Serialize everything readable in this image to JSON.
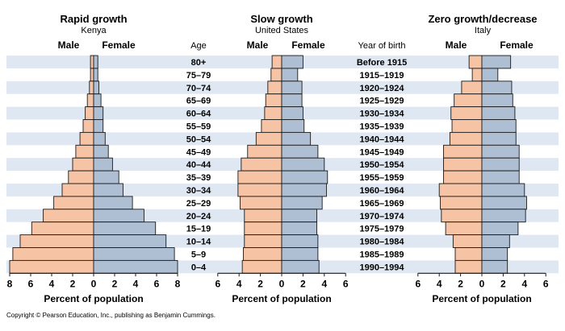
{
  "copyright": "Copyright © Pearson Education, Inc., publishing as Benjamin Cummings.",
  "age_header": "Age",
  "year_header": "Year of birth",
  "age_groups": [
    "80+",
    "75–79",
    "70–74",
    "65–69",
    "60–64",
    "55–59",
    "50–54",
    "45–49",
    "40–44",
    "35–39",
    "30–34",
    "25–29",
    "20–24",
    "15–19",
    "10–14",
    "5–9",
    "0–4"
  ],
  "birth_years": [
    "Before 1915",
    "1915–1919",
    "1920–1924",
    "1925–1929",
    "1930–1934",
    "1935–1939",
    "1940–1944",
    "1945–1949",
    "1950–1954",
    "1955–1959",
    "1960–1964",
    "1965–1969",
    "1970–1974",
    "1975–1979",
    "1980–1984",
    "1985–1989",
    "1990–1994"
  ],
  "colors": {
    "male": "#f6c4a4",
    "female": "#aebfd3",
    "stripe": "#dfe8f2",
    "outline": "#1a1a1a"
  },
  "chart_data": [
    {
      "type": "bar",
      "title": "Rapid growth",
      "subtitle": "Kenya",
      "xlabel": "Percent of population",
      "legend": [
        "Male",
        "Female"
      ],
      "xlim": [
        -8,
        8
      ],
      "xticks": [
        "8",
        "6",
        "4",
        "2",
        "0",
        "2",
        "4",
        "6",
        "8"
      ],
      "categories": [
        "80+",
        "75–79",
        "70–74",
        "65–69",
        "60–64",
        "55–59",
        "50–54",
        "45–49",
        "40–44",
        "35–39",
        "30–34",
        "25–29",
        "20–24",
        "15–19",
        "10–14",
        "5–9",
        "0–4"
      ],
      "series": [
        {
          "name": "Male",
          "values": [
            0.3,
            0.3,
            0.4,
            0.6,
            0.8,
            1.0,
            1.3,
            1.7,
            2.0,
            2.4,
            3.0,
            3.8,
            4.8,
            5.9,
            7.0,
            7.7,
            8.0
          ]
        },
        {
          "name": "Female",
          "values": [
            0.4,
            0.4,
            0.5,
            0.7,
            0.9,
            0.9,
            1.1,
            1.4,
            1.8,
            2.4,
            2.8,
            3.7,
            4.8,
            5.9,
            6.9,
            7.7,
            8.0
          ]
        }
      ]
    },
    {
      "type": "bar",
      "title": "Slow growth",
      "subtitle": "United States",
      "xlabel": "Percent of population",
      "legend": [
        "Male",
        "Female"
      ],
      "xlim": [
        -6,
        6
      ],
      "xticks": [
        "6",
        "4",
        "2",
        "0",
        "2",
        "4",
        "6"
      ],
      "categories": [
        "80+",
        "75–79",
        "70–74",
        "65–69",
        "60–64",
        "55–59",
        "50–54",
        "45–49",
        "40–44",
        "35–39",
        "30–34",
        "25–29",
        "20–24",
        "15–19",
        "10–14",
        "5–9",
        "0–4"
      ],
      "series": [
        {
          "name": "Male",
          "values": [
            0.9,
            1.0,
            1.3,
            1.5,
            1.6,
            1.9,
            2.4,
            3.2,
            3.8,
            4.1,
            4.1,
            3.9,
            3.5,
            3.5,
            3.5,
            3.6,
            3.7
          ]
        },
        {
          "name": "Female",
          "values": [
            2.0,
            1.5,
            1.9,
            1.9,
            2.0,
            2.1,
            2.7,
            3.4,
            4.0,
            4.3,
            4.2,
            3.8,
            3.3,
            3.3,
            3.4,
            3.4,
            3.5
          ]
        }
      ]
    },
    {
      "type": "bar",
      "title": "Zero growth/decrease",
      "subtitle": "Italy",
      "xlabel": "Percent of population",
      "legend": [
        "Male",
        "Female"
      ],
      "xlim": [
        -6,
        6
      ],
      "xticks": [
        "6",
        "4",
        "2",
        "0",
        "2",
        "4",
        "6"
      ],
      "categories": [
        "80+",
        "75–79",
        "70–74",
        "65–69",
        "60–64",
        "55–59",
        "50–54",
        "45–49",
        "40–44",
        "35–39",
        "30–34",
        "25–29",
        "20–24",
        "15–19",
        "10–14",
        "5–9",
        "0–4"
      ],
      "series": [
        {
          "name": "Male",
          "values": [
            1.2,
            0.9,
            1.9,
            2.6,
            2.9,
            2.8,
            3.0,
            3.6,
            3.6,
            3.6,
            4.0,
            3.9,
            3.8,
            3.4,
            2.7,
            2.5,
            2.5
          ]
        },
        {
          "name": "Female",
          "values": [
            2.7,
            1.5,
            2.8,
            2.9,
            3.1,
            3.2,
            3.2,
            3.5,
            3.5,
            3.5,
            4.0,
            4.2,
            4.1,
            3.4,
            2.6,
            2.4,
            2.4
          ]
        }
      ]
    }
  ]
}
